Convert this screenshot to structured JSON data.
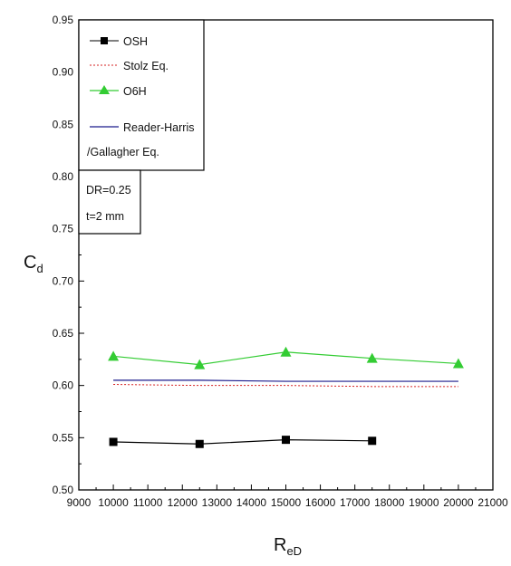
{
  "chart_data": {
    "type": "line",
    "xlabel": {
      "main": "R",
      "sub": "eD"
    },
    "ylabel": {
      "main": "C",
      "sub": "d"
    },
    "xlim": [
      9000,
      21000
    ],
    "ylim": [
      0.5,
      0.95
    ],
    "x_ticks": [
      "9000",
      "10000",
      "11000",
      "12000",
      "13000",
      "14000",
      "15000",
      "16000",
      "17000",
      "18000",
      "19000",
      "20000",
      "21000"
    ],
    "y_ticks": [
      "0.50",
      "0.55",
      "0.60",
      "0.65",
      "0.70",
      "0.75",
      "0.80",
      "0.85",
      "0.90",
      "0.95"
    ],
    "grid": false,
    "legend_placement": "top-left",
    "legend": [
      {
        "label": "OSH",
        "marker": "square",
        "line": "solid",
        "color": "#000000"
      },
      {
        "label": "Stolz Eq.",
        "marker": "none",
        "line": "dotted",
        "color": "#d62020"
      },
      {
        "label": "O6H",
        "marker": "triangle",
        "line": "solid",
        "color": "#33cc33"
      },
      {
        "label": "Reader-Harris",
        "label2": "/Gallagher Eq.",
        "marker": "none",
        "line": "solid",
        "color": "#1a1a8c"
      }
    ],
    "annotation": [
      "DR=0.25",
      "t=2 mm"
    ],
    "series": [
      {
        "name": "OSH",
        "color": "#000000",
        "marker": "square",
        "dash": "",
        "x": [
          10000,
          12500,
          15000,
          17500
        ],
        "y": [
          0.546,
          0.544,
          0.548,
          0.547
        ]
      },
      {
        "name": "Stolz Eq.",
        "color": "#d62020",
        "marker": "none",
        "dash": "2,2",
        "x": [
          10000,
          12500,
          15000,
          17500,
          20000
        ],
        "y": [
          0.601,
          0.6,
          0.6,
          0.599,
          0.599
        ]
      },
      {
        "name": "O6H",
        "color": "#33cc33",
        "marker": "triangle",
        "dash": "",
        "x": [
          10000,
          12500,
          15000,
          17500,
          20000
        ],
        "y": [
          0.628,
          0.62,
          0.632,
          0.626,
          0.621
        ]
      },
      {
        "name": "Reader-Harris /Gallagher Eq.",
        "color": "#1a1a8c",
        "marker": "none",
        "dash": "",
        "x": [
          10000,
          12500,
          15000,
          17500,
          20000
        ],
        "y": [
          0.605,
          0.605,
          0.604,
          0.604,
          0.604
        ]
      }
    ]
  }
}
